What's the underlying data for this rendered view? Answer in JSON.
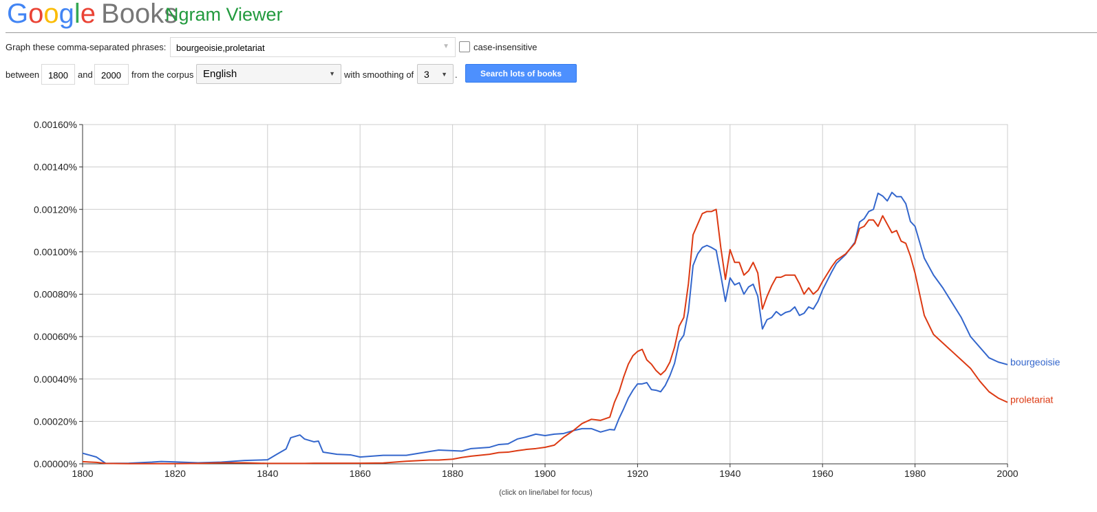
{
  "header": {
    "logo_letters": [
      "G",
      "o",
      "o",
      "g",
      "l",
      "e"
    ],
    "logo_colors": [
      "#4285f4",
      "#ea4335",
      "#fbbc05",
      "#4285f4",
      "#34a853",
      "#ea4335"
    ],
    "brand": "Books",
    "title": "Ngram Viewer"
  },
  "form": {
    "phrases_label": "Graph these comma-separated phrases:",
    "phrases": "bourgeoisie,proletariat",
    "case_label": "case-insensitive",
    "between": "between",
    "start_year": "1800",
    "and": "and",
    "end_year": "2000",
    "corpus_label": "from the corpus",
    "corpus": "English",
    "smoothing_label": "with smoothing of",
    "smoothing": "3",
    "period": ".",
    "button": "Search lots of books"
  },
  "chart_data": {
    "type": "line",
    "x": [
      1800,
      1803,
      1805,
      1810,
      1815,
      1817,
      1820,
      1825,
      1830,
      1835,
      1840,
      1842,
      1844,
      1845,
      1847,
      1848,
      1850,
      1851,
      1852,
      1855,
      1858,
      1860,
      1865,
      1870,
      1875,
      1877,
      1880,
      1882,
      1884,
      1888,
      1890,
      1892,
      1894,
      1896,
      1898,
      1900,
      1902,
      1904,
      1906,
      1908,
      1910,
      1912,
      1914,
      1915,
      1916,
      1917,
      1918,
      1919,
      1920,
      1921,
      1922,
      1923,
      1924,
      1925,
      1926,
      1927,
      1928,
      1929,
      1930,
      1931,
      1932,
      1933,
      1934,
      1935,
      1936,
      1937,
      1938,
      1939,
      1940,
      1941,
      1942,
      1943,
      1944,
      1945,
      1946,
      1947,
      1948,
      1949,
      1950,
      1951,
      1952,
      1953,
      1954,
      1955,
      1956,
      1957,
      1958,
      1959,
      1960,
      1962,
      1963,
      1965,
      1967,
      1968,
      1969,
      1970,
      1971,
      1972,
      1973,
      1974,
      1975,
      1976,
      1977,
      1978,
      1979,
      1980,
      1982,
      1984,
      1986,
      1988,
      1990,
      1992,
      1994,
      1996,
      1998,
      2000
    ],
    "series": [
      {
        "name": "bourgeoisie",
        "color": "#3366cc",
        "values": [
          5e-05,
          3.2e-05,
          2e-06,
          3e-06,
          8e-06,
          1.1e-05,
          9e-06,
          5e-06,
          8e-06,
          1.6e-05,
          1.9e-05,
          4.5e-05,
          7e-05,
          0.000123,
          0.000136,
          0.000117,
          0.000104,
          0.000107,
          5.5e-05,
          4.5e-05,
          4.2e-05,
          3.2e-05,
          4e-05,
          4e-05,
          5.8e-05,
          6.5e-05,
          6.2e-05,
          6e-05,
          7.2e-05,
          7.8e-05,
          9.1e-05,
          9.4e-05,
          0.000117,
          0.000127,
          0.00014,
          0.000133,
          0.00014,
          0.000143,
          0.000156,
          0.000166,
          0.000166,
          0.00015,
          0.000162,
          0.00016,
          0.000214,
          0.00026,
          0.00031,
          0.000347,
          0.000377,
          0.000377,
          0.000383,
          0.00035,
          0.000347,
          0.00034,
          0.00037,
          0.000416,
          0.000474,
          0.000575,
          0.000607,
          0.00072,
          0.000935,
          0.00099,
          0.00102,
          0.00103,
          0.00102,
          0.001007,
          0.00089,
          0.000766,
          0.000877,
          0.000844,
          0.000854,
          0.0008,
          0.000834,
          0.000847,
          0.00079,
          0.000636,
          0.00068,
          0.00069,
          0.000718,
          0.0007,
          0.000714,
          0.00072,
          0.00074,
          0.0007,
          0.00071,
          0.00074,
          0.00073,
          0.000766,
          0.00082,
          0.000906,
          0.000945,
          0.000987,
          0.001045,
          0.00114,
          0.001156,
          0.00119,
          0.0012,
          0.001276,
          0.001263,
          0.00124,
          0.00128,
          0.00126,
          0.00126,
          0.001227,
          0.001143,
          0.00112,
          0.00097,
          0.00089,
          0.00083,
          0.00076,
          0.00069,
          0.0006,
          0.00055,
          0.0005,
          0.00048,
          0.000468
        ]
      },
      {
        "name": "proletariat",
        "color": "#dc3912",
        "values": [
          1e-05,
          7e-06,
          2e-06,
          1e-06,
          1e-06,
          1e-06,
          1e-06,
          2e-06,
          5e-06,
          5e-06,
          2e-06,
          2e-06,
          2e-06,
          2e-06,
          2e-06,
          2e-06,
          3e-06,
          3e-06,
          3e-06,
          3e-06,
          3e-06,
          3e-06,
          4e-06,
          1.2e-05,
          1.8e-05,
          1.8e-05,
          2.2e-05,
          3e-05,
          3.6e-05,
          4.5e-05,
          5.3e-05,
          5.5e-05,
          6.2e-05,
          6.8e-05,
          7.2e-05,
          7.8e-05,
          8.8e-05,
          0.000125,
          0.000155,
          0.00019,
          0.00021,
          0.000205,
          0.00022,
          0.00029,
          0.00034,
          0.00041,
          0.00047,
          0.00051,
          0.00053,
          0.00054,
          0.00049,
          0.00047,
          0.00044,
          0.00042,
          0.00044,
          0.00048,
          0.00055,
          0.00065,
          0.00069,
          0.00085,
          0.00108,
          0.00113,
          0.00118,
          0.00119,
          0.00119,
          0.0012,
          0.00102,
          0.00087,
          0.00101,
          0.00095,
          0.00095,
          0.00089,
          0.00091,
          0.00095,
          0.0009,
          0.00073,
          0.00079,
          0.00084,
          0.00088,
          0.00088,
          0.00089,
          0.00089,
          0.00089,
          0.00085,
          0.0008,
          0.00083,
          0.0008,
          0.00082,
          0.00086,
          0.00093,
          0.00096,
          0.00099,
          0.00104,
          0.00111,
          0.00112,
          0.00115,
          0.00115,
          0.00112,
          0.00117,
          0.00113,
          0.00109,
          0.0011,
          0.00105,
          0.00104,
          0.00098,
          0.0009,
          0.0007,
          0.00061,
          0.00057,
          0.00053,
          0.00049,
          0.00045,
          0.00039,
          0.00034,
          0.00031,
          0.00029
        ]
      }
    ],
    "xlim": [
      1800,
      2000
    ],
    "xticks": [
      1800,
      1820,
      1840,
      1860,
      1880,
      1900,
      1920,
      1940,
      1960,
      1980,
      2000
    ],
    "ylim": [
      0,
      0.0016
    ],
    "yticks": [
      {
        "value": 0,
        "label": "0.00000%"
      },
      {
        "value": 0.0002,
        "label": "0.00020%"
      },
      {
        "value": 0.0004,
        "label": "0.00040%"
      },
      {
        "value": 0.0006,
        "label": "0.00060%"
      },
      {
        "value": 0.0008,
        "label": "0.00080%"
      },
      {
        "value": 0.001,
        "label": "0.00100%"
      },
      {
        "value": 0.0012,
        "label": "0.00120%"
      },
      {
        "value": 0.0014,
        "label": "0.00140%"
      },
      {
        "value": 0.0016,
        "label": "0.00160%"
      }
    ],
    "grid": true,
    "note": "(click on line/label for focus)"
  }
}
